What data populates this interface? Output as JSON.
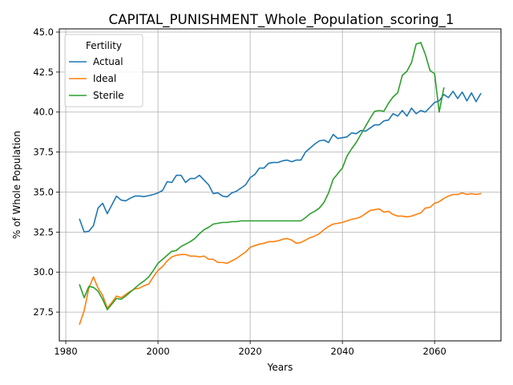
{
  "chart_data": {
    "type": "line",
    "title": "CAPITAL_PUNISHMENT_Whole_Population_scoring_1",
    "xlabel": "Years",
    "ylabel": "% of Whole Population",
    "xlim": [
      1978.6,
      2074.4
    ],
    "ylim": [
      25.7,
      45.2
    ],
    "x_ticks": [
      1980,
      2000,
      2020,
      2040,
      2060
    ],
    "y_ticks": [
      27.5,
      30.0,
      32.5,
      35.0,
      37.5,
      40.0,
      42.5,
      45.0
    ],
    "x_tick_labels": [
      "1980",
      "2000",
      "2020",
      "2040",
      "2060"
    ],
    "y_tick_labels": [
      "27.5",
      "30.0",
      "32.5",
      "35.0",
      "37.5",
      "40.0",
      "42.5",
      "45.0"
    ],
    "grid": true,
    "legend": {
      "title": "Fertility",
      "placement": "top-left"
    },
    "series": [
      {
        "name": "Actual",
        "color": "#1f77b4",
        "x": [
          1983,
          1984,
          1985,
          1986,
          1987,
          1988,
          1989,
          1990,
          1991,
          1992,
          1993,
          1994,
          1995,
          1996,
          1997,
          1998,
          1999,
          2000,
          2001,
          2002,
          2003,
          2004,
          2005,
          2006,
          2007,
          2008,
          2009,
          2010,
          2011,
          2012,
          2013,
          2014,
          2015,
          2016,
          2017,
          2018,
          2019,
          2020,
          2021,
          2022,
          2023,
          2024,
          2025,
          2026,
          2027,
          2028,
          2029,
          2030,
          2031,
          2032,
          2033,
          2034,
          2035,
          2036,
          2037,
          2038,
          2039,
          2040,
          2041,
          2042,
          2043,
          2044,
          2045,
          2046,
          2047,
          2048,
          2049,
          2050,
          2051,
          2052,
          2053,
          2054,
          2055,
          2056,
          2057,
          2058,
          2059,
          2060,
          2061,
          2062,
          2063,
          2064,
          2065,
          2066,
          2067,
          2068,
          2069,
          2070
        ],
        "values": [
          33.3,
          32.5,
          32.55,
          32.9,
          34.0,
          34.3,
          33.65,
          34.2,
          34.75,
          34.5,
          34.45,
          34.62,
          34.75,
          34.75,
          34.72,
          34.78,
          34.85,
          34.95,
          35.1,
          35.65,
          35.6,
          36.05,
          36.05,
          35.6,
          35.85,
          35.85,
          36.05,
          35.75,
          35.45,
          34.9,
          34.95,
          34.75,
          34.7,
          34.95,
          35.05,
          35.25,
          35.45,
          35.9,
          36.1,
          36.5,
          36.5,
          36.8,
          36.85,
          36.85,
          36.95,
          37.0,
          36.9,
          37.0,
          37.0,
          37.5,
          37.75,
          38.0,
          38.2,
          38.25,
          38.1,
          38.6,
          38.35,
          38.4,
          38.45,
          38.7,
          38.65,
          38.85,
          38.8,
          39.0,
          39.2,
          39.2,
          39.45,
          39.5,
          39.9,
          39.75,
          40.1,
          39.75,
          40.25,
          39.9,
          40.1,
          40.0,
          40.3,
          40.6,
          40.7,
          41.1,
          40.9,
          41.3,
          40.85,
          41.25,
          40.7,
          41.2,
          40.65,
          41.15
        ]
      },
      {
        "name": "Ideal",
        "color": "#ff7f0e",
        "x": [
          1983,
          1984,
          1985,
          1986,
          1987,
          1988,
          1989,
          1990,
          1991,
          1992,
          1993,
          1994,
          1995,
          1996,
          1997,
          1998,
          1999,
          2000,
          2001,
          2002,
          2003,
          2004,
          2005,
          2006,
          2007,
          2008,
          2009,
          2010,
          2011,
          2012,
          2013,
          2014,
          2015,
          2016,
          2017,
          2018,
          2019,
          2020,
          2021,
          2022,
          2023,
          2024,
          2025,
          2026,
          2027,
          2028,
          2029,
          2030,
          2031,
          2032,
          2033,
          2034,
          2035,
          2036,
          2037,
          2038,
          2039,
          2040,
          2041,
          2042,
          2043,
          2044,
          2045,
          2046,
          2047,
          2048,
          2049,
          2050,
          2051,
          2052,
          2053,
          2054,
          2055,
          2056,
          2057,
          2058,
          2059,
          2060,
          2061,
          2062,
          2063,
          2064,
          2065,
          2066,
          2067,
          2068,
          2069,
          2070
        ],
        "values": [
          26.75,
          27.6,
          29.0,
          29.7,
          29.0,
          28.55,
          27.75,
          28.1,
          28.5,
          28.4,
          28.6,
          28.8,
          28.95,
          29.0,
          29.15,
          29.25,
          29.7,
          30.1,
          30.35,
          30.7,
          30.95,
          31.05,
          31.1,
          31.1,
          31.0,
          31.0,
          30.95,
          31.0,
          30.8,
          30.8,
          30.6,
          30.6,
          30.55,
          30.7,
          30.85,
          31.05,
          31.25,
          31.55,
          31.65,
          31.75,
          31.8,
          31.9,
          31.9,
          31.95,
          32.05,
          32.1,
          32.0,
          31.8,
          31.85,
          32.0,
          32.15,
          32.25,
          32.4,
          32.65,
          32.85,
          33.0,
          33.05,
          33.1,
          33.2,
          33.3,
          33.35,
          33.45,
          33.65,
          33.85,
          33.9,
          33.95,
          33.75,
          33.8,
          33.6,
          33.5,
          33.5,
          33.45,
          33.5,
          33.6,
          33.7,
          34.0,
          34.05,
          34.3,
          34.4,
          34.6,
          34.75,
          34.85,
          34.85,
          34.95,
          34.85,
          34.9,
          34.85,
          34.9
        ]
      },
      {
        "name": "Sterile",
        "color": "#2ca02c",
        "x": [
          1983,
          1984,
          1985,
          1986,
          1987,
          1988,
          1989,
          1990,
          1991,
          1992,
          1993,
          1994,
          1995,
          1996,
          1997,
          1998,
          1999,
          2000,
          2001,
          2002,
          2003,
          2004,
          2005,
          2006,
          2007,
          2008,
          2009,
          2010,
          2011,
          2012,
          2013,
          2014,
          2015,
          2016,
          2017,
          2018,
          2019,
          2020,
          2021,
          2022,
          2023,
          2024,
          2025,
          2026,
          2027,
          2028,
          2029,
          2030,
          2031,
          2032,
          2033,
          2034,
          2035,
          2036,
          2037,
          2038,
          2039,
          2040,
          2041,
          2042,
          2043,
          2044,
          2045,
          2046,
          2047,
          2048,
          2049,
          2050,
          2051,
          2052,
          2053,
          2054,
          2055,
          2056,
          2057,
          2058,
          2059,
          2060,
          2061,
          2062
        ],
        "values": [
          29.2,
          28.4,
          29.1,
          29.05,
          28.8,
          28.3,
          27.65,
          28.0,
          28.35,
          28.3,
          28.5,
          28.75,
          29.0,
          29.25,
          29.45,
          29.7,
          30.1,
          30.55,
          30.8,
          31.05,
          31.3,
          31.35,
          31.6,
          31.75,
          31.9,
          32.1,
          32.4,
          32.65,
          32.8,
          33.0,
          33.05,
          33.1,
          33.1,
          33.15,
          33.15,
          33.2,
          33.2,
          33.2,
          33.2,
          33.2,
          33.2,
          33.2,
          33.2,
          33.2,
          33.2,
          33.2,
          33.2,
          33.2,
          33.2,
          33.4,
          33.65,
          33.8,
          34.0,
          34.35,
          34.95,
          35.8,
          36.15,
          36.5,
          37.25,
          37.7,
          38.1,
          38.6,
          39.1,
          39.6,
          40.05,
          40.1,
          40.05,
          40.55,
          40.95,
          41.2,
          42.3,
          42.55,
          43.1,
          44.25,
          44.35,
          43.6,
          42.6,
          42.4,
          40.0,
          41.5
        ]
      }
    ]
  }
}
